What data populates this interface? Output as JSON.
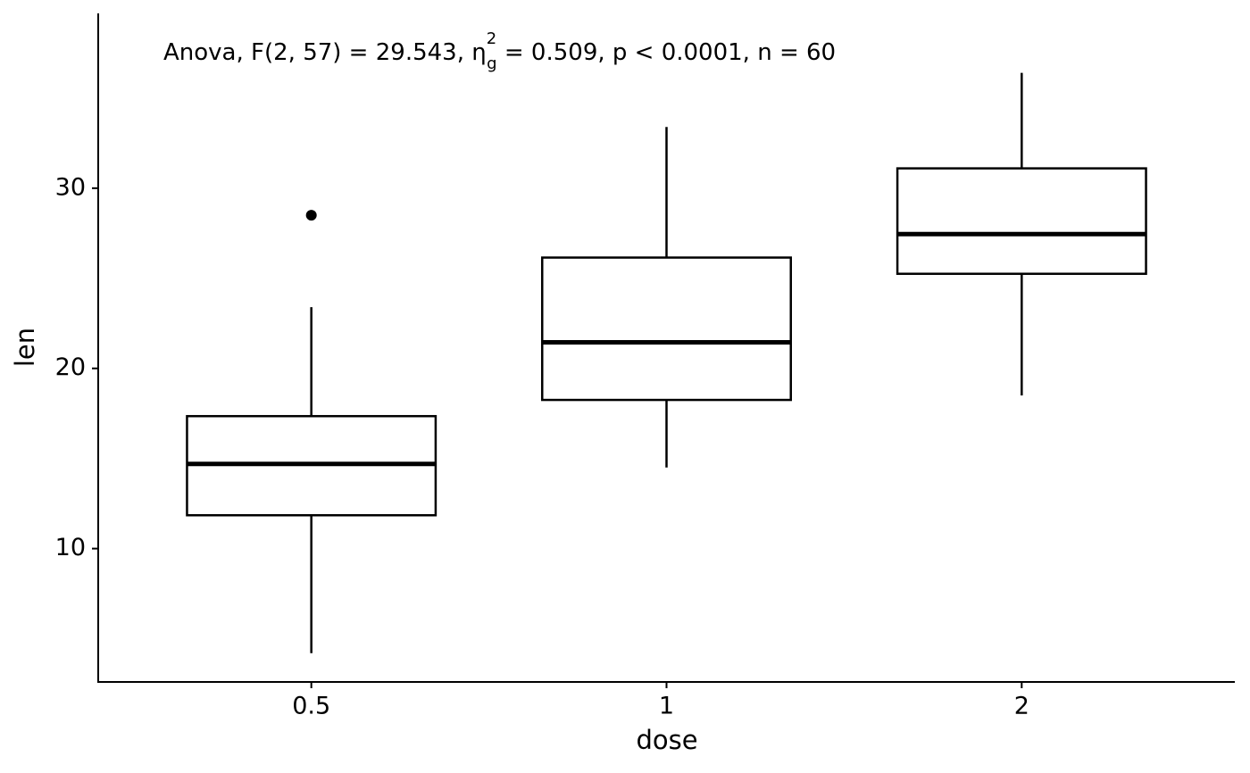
{
  "chart_data": {
    "type": "box",
    "annotation": [
      "Anova, F(2, 57) = 29.543, η",
      "2",
      "g",
      " = 0.509, p < 0.0001, n = 60"
    ],
    "x_label": "dose",
    "y_label": "len",
    "categories": [
      "0.5",
      "1",
      "2"
    ],
    "min": [
      4.2,
      14.5,
      18.5
    ],
    "q1": [
      11.85,
      18.25,
      25.25
    ],
    "median": [
      14.7,
      21.45,
      27.45
    ],
    "q3": [
      17.35,
      26.15,
      31.1
    ],
    "max": [
      23.4,
      33.4,
      36.4
    ],
    "outliers": [
      [
        28.5
      ],
      [],
      []
    ],
    "color": "#000000",
    "fill": "#ffffff",
    "ylim": [
      2.6,
      39.7
    ],
    "yticks": [
      10,
      20,
      30
    ],
    "grid": false
  }
}
